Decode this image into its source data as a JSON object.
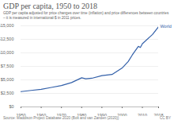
{
  "chart_data": {
    "type": "line",
    "title": "GDP per capita, 1950 to 2018",
    "subtitle": "GDP per capita adjusted for price changes over time (inflation) and price differences between countries – it is measured in international-$ in 2011 prices.",
    "source": "Source: Maddison Project Database 2020 (Bolt and van Zanden (2020))",
    "license": "CC BY",
    "x": [
      1950,
      1955,
      1960,
      1965,
      1970,
      1975,
      1980,
      1982,
      1985,
      1990,
      1995,
      2000,
      2003,
      2005,
      2008,
      2009,
      2010,
      2015,
      2018
    ],
    "series": [
      {
        "name": "World",
        "color": "#3360a9",
        "values": [
          2830,
          3050,
          3250,
          3600,
          3960,
          4500,
          5380,
          5200,
          5300,
          5800,
          6000,
          7200,
          8400,
          9600,
          11200,
          11000,
          11700,
          13400,
          14850
        ]
      }
    ],
    "xlim": [
      1950,
      2018
    ],
    "xticks": [
      1950,
      1960,
      1970,
      1980,
      1990,
      2000,
      2010,
      2018
    ],
    "ylim": [
      0,
      15000
    ],
    "yticks": [
      {
        "value": 0,
        "label": "$0"
      },
      {
        "value": 2500,
        "label": "$2,500"
      },
      {
        "value": 5000,
        "label": "$5,000"
      },
      {
        "value": 7500,
        "label": "$7,500"
      },
      {
        "value": 10000,
        "label": "$10,000"
      },
      {
        "value": 12500,
        "label": "$12,500"
      },
      {
        "value": 15000,
        "label": "$15,000"
      }
    ],
    "grid": true
  }
}
